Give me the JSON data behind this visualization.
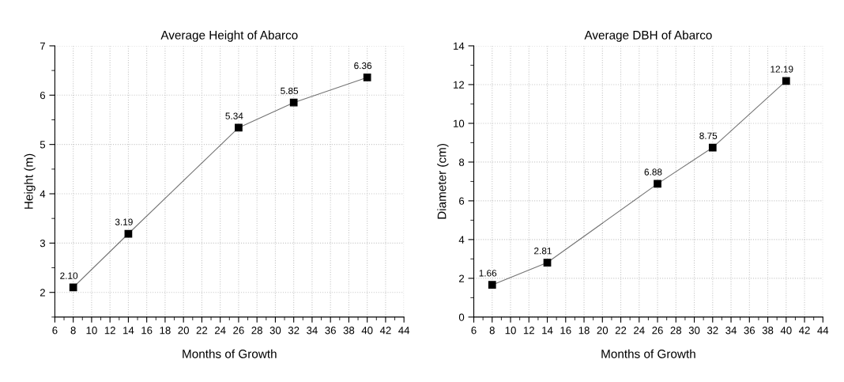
{
  "chart_data": [
    {
      "type": "line",
      "title": "Average Height of Abarco",
      "xlabel": "Months of Growth",
      "ylabel": "Height (m)",
      "x": [
        8,
        14,
        26,
        32,
        40
      ],
      "series": [
        {
          "color": "#000000",
          "values": [
            2.1,
            3.19,
            5.34,
            5.85,
            6.36
          ],
          "value_labels": [
            "2.10",
            "3.19",
            "5.34",
            "5.85",
            "6.36"
          ]
        }
      ],
      "xlim": [
        6,
        44
      ],
      "xticks": [
        6,
        8,
        10,
        12,
        14,
        16,
        18,
        20,
        22,
        24,
        26,
        28,
        30,
        32,
        34,
        36,
        38,
        40,
        42,
        44
      ],
      "ylim": [
        1.5,
        7
      ],
      "yticks": [
        2,
        3,
        4,
        5,
        6,
        7
      ],
      "grid": true,
      "marker": "square",
      "line_style": "solid"
    },
    {
      "type": "line",
      "title": "Average DBH of Abarco",
      "xlabel": "Months of Growth",
      "ylabel": "Diameter (cm)",
      "x": [
        8,
        14,
        26,
        32,
        40
      ],
      "series": [
        {
          "color": "#000000",
          "values": [
            1.66,
            2.81,
            6.88,
            8.75,
            12.19
          ],
          "value_labels": [
            "1.66",
            "2.81",
            "6.88",
            "8.75",
            "12.19"
          ]
        }
      ],
      "xlim": [
        6,
        44
      ],
      "xticks": [
        6,
        8,
        10,
        12,
        14,
        16,
        18,
        20,
        22,
        24,
        26,
        28,
        30,
        32,
        34,
        36,
        38,
        40,
        42,
        44
      ],
      "ylim": [
        0,
        14
      ],
      "yticks": [
        0,
        2,
        4,
        6,
        8,
        10,
        12,
        14
      ],
      "grid": true,
      "marker": "square",
      "line_style": "solid"
    }
  ]
}
